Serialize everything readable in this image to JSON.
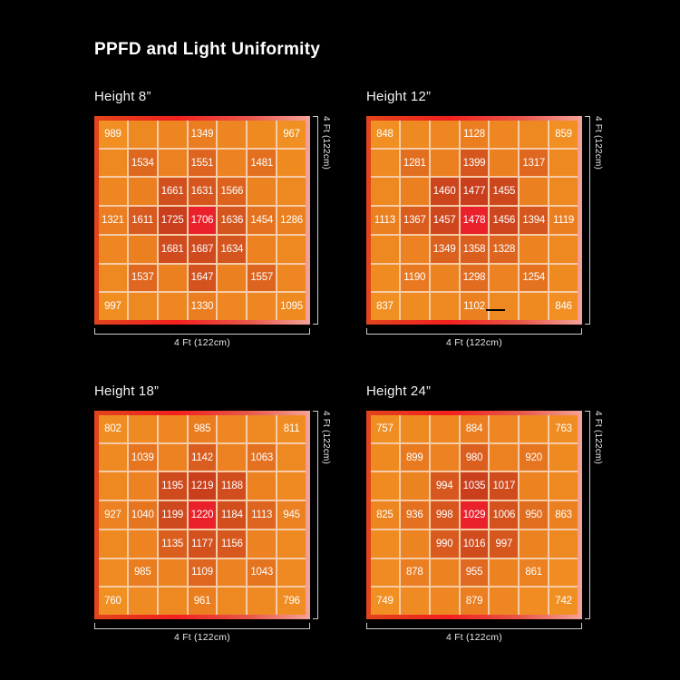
{
  "page": {
    "title": "PPFD and Light Uniformity",
    "background": "#000000"
  },
  "colors": {
    "text": "#FFFFFF",
    "gridline": "#F6CBA8",
    "bracket": "#CCCCCC",
    "center_red": "#EA202A",
    "frame_gradient": {
      "start": "#E2451C",
      "mid": "#F2201F",
      "end": "#F4A39A"
    },
    "heat_ramp": [
      {
        "t": 0.0,
        "color": "#F19022"
      },
      {
        "t": 0.5,
        "color": "#EA7D20"
      },
      {
        "t": 0.7,
        "color": "#E26E1F"
      },
      {
        "t": 0.85,
        "color": "#D85A1E"
      },
      {
        "t": 0.95,
        "color": "#CF4A1D"
      },
      {
        "t": 1.0,
        "color": "#C93E1C"
      }
    ]
  },
  "chart_data": [
    {
      "type": "heatmap",
      "title": "Height 8”",
      "xlabel": "4 Ft (122cm)",
      "ylabel": "4 Ft (122cm)",
      "rows": 7,
      "cols": 7,
      "values": [
        [
          989,
          null,
          null,
          1349,
          null,
          null,
          967
        ],
        [
          null,
          1534,
          null,
          1551,
          null,
          1481,
          null
        ],
        [
          null,
          null,
          1661,
          1631,
          1566,
          null,
          null
        ],
        [
          1321,
          1611,
          1725,
          1706,
          1636,
          1454,
          1286
        ],
        [
          null,
          null,
          1681,
          1687,
          1634,
          null,
          null
        ],
        [
          null,
          1537,
          null,
          1647,
          null,
          1557,
          null
        ],
        [
          997,
          null,
          null,
          1330,
          null,
          null,
          1095
        ]
      ]
    },
    {
      "type": "heatmap",
      "title": "Height 12”",
      "xlabel": "4 Ft (122cm)",
      "ylabel": "4 Ft (122cm)",
      "rows": 7,
      "cols": 7,
      "values": [
        [
          848,
          null,
          null,
          1128,
          null,
          null,
          859
        ],
        [
          null,
          1281,
          null,
          1399,
          null,
          1317,
          null
        ],
        [
          null,
          null,
          1460,
          1477,
          1455,
          null,
          null
        ],
        [
          1113,
          1367,
          1457,
          1478,
          1456,
          1394,
          1119
        ],
        [
          null,
          null,
          1349,
          1358,
          1328,
          null,
          null
        ],
        [
          null,
          1190,
          null,
          1298,
          null,
          1254,
          null
        ],
        [
          837,
          null,
          null,
          1102,
          null,
          null,
          846
        ]
      ],
      "stray_dash_artifact": true
    },
    {
      "type": "heatmap",
      "title": "Height 18”",
      "xlabel": "4 Ft (122cm)",
      "ylabel": "4 Ft (122cm)",
      "rows": 7,
      "cols": 7,
      "values": [
        [
          802,
          null,
          null,
          985,
          null,
          null,
          811
        ],
        [
          null,
          1039,
          null,
          1142,
          null,
          1063,
          null
        ],
        [
          null,
          null,
          1195,
          1219,
          1188,
          null,
          null
        ],
        [
          927,
          1040,
          1199,
          1220,
          1184,
          1113,
          945
        ],
        [
          null,
          null,
          1135,
          1177,
          1156,
          null,
          null
        ],
        [
          null,
          985,
          null,
          1109,
          null,
          1043,
          null
        ],
        [
          760,
          null,
          null,
          961,
          null,
          null,
          796
        ]
      ]
    },
    {
      "type": "heatmap",
      "title": "Height 24”",
      "xlabel": "4 Ft (122cm)",
      "ylabel": "4 Ft (122cm)",
      "rows": 7,
      "cols": 7,
      "values": [
        [
          757,
          null,
          null,
          884,
          null,
          null,
          763
        ],
        [
          null,
          899,
          null,
          980,
          null,
          920,
          null
        ],
        [
          null,
          null,
          994,
          1035,
          1017,
          null,
          null
        ],
        [
          825,
          936,
          998,
          1029,
          1006,
          950,
          863
        ],
        [
          null,
          null,
          990,
          1016,
          997,
          null,
          null
        ],
        [
          null,
          878,
          null,
          955,
          null,
          861,
          null
        ],
        [
          749,
          null,
          null,
          879,
          null,
          null,
          742
        ]
      ]
    }
  ]
}
